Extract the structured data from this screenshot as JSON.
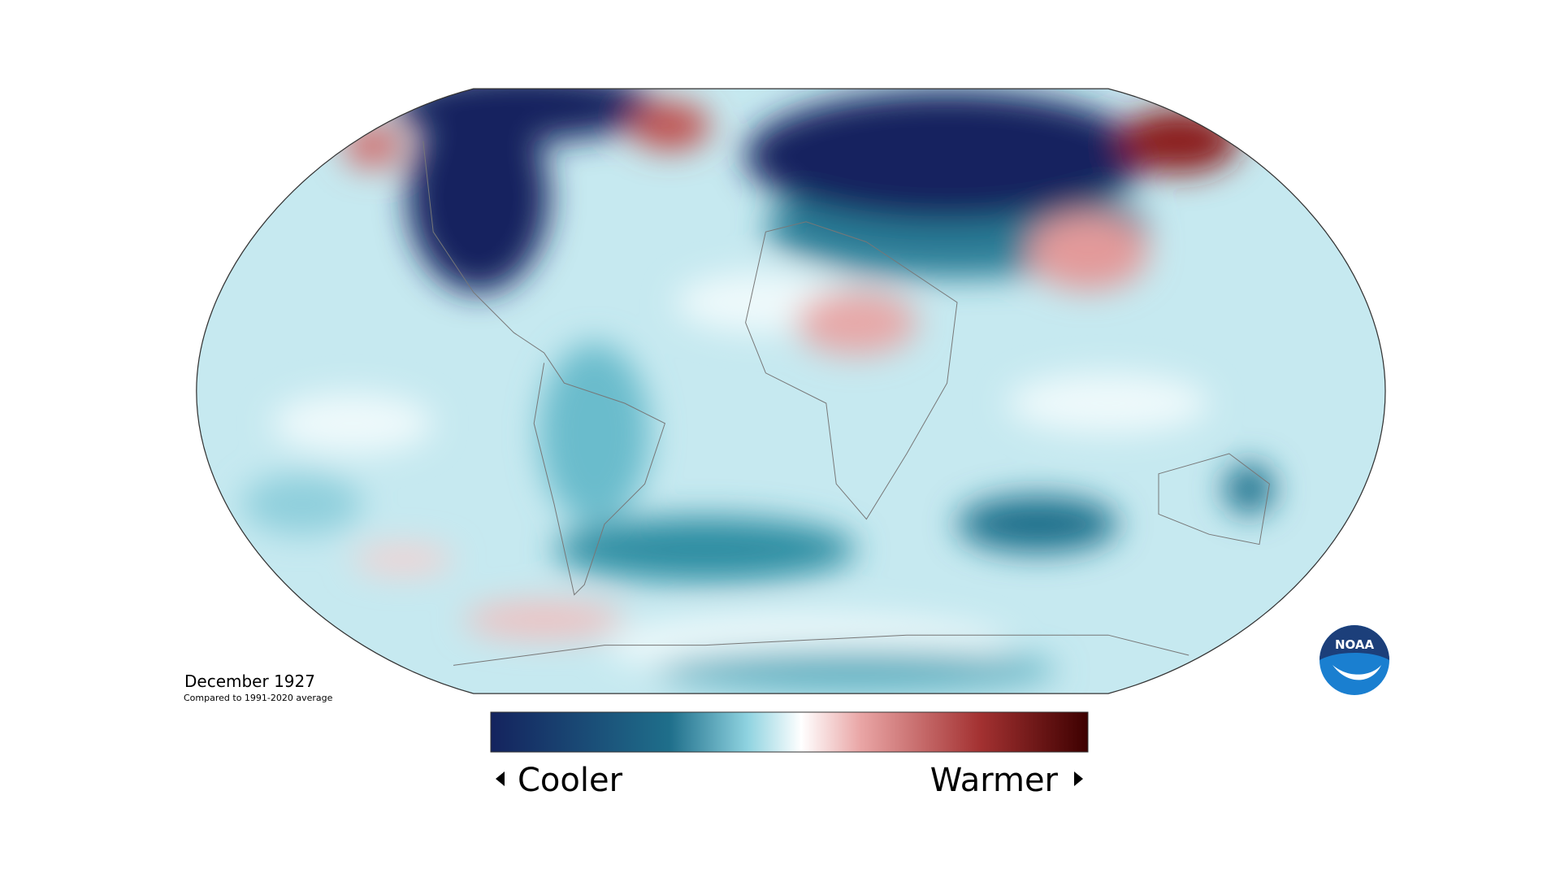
{
  "map": {
    "title": "December 1927",
    "subtitle": "Compared to 1991-2020 average"
  },
  "legend": {
    "low": "Cooler",
    "high": "Warmer"
  },
  "logo": {
    "text": "NOAA"
  }
}
